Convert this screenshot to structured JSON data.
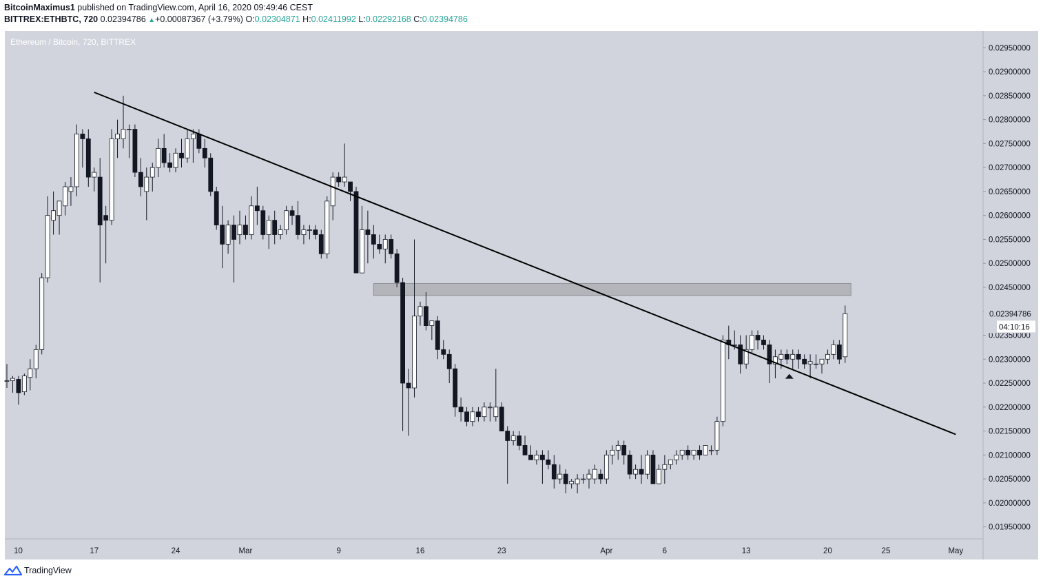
{
  "header": {
    "author": "BitcoinMaximus1",
    "published": "published on TradingView.com, April 16, 2020 09:49:46 CEST",
    "symbol": "BITTREX:ETHBTC, 720",
    "last": "0.02394786",
    "arrow": "▲",
    "change": "+0.00087367 (+3.79%)",
    "o_label": "O:",
    "o_value": "0.02304871",
    "h_label": "H:",
    "h_value": "0.02411992",
    "l_label": "L:",
    "l_value": "0.02292168",
    "c_label": "C:",
    "c_value": "0.02394786"
  },
  "footer": {
    "brand": "TradingView",
    "logo_icon": "tradingview-logo-icon"
  },
  "colors": {
    "background": "#d1d4dc",
    "candle_up": "#ffffff",
    "candle_down": "#131722",
    "zone": "#a9abb0",
    "trendline": "#000000"
  },
  "chart_data": {
    "type": "candlestick",
    "title": "Ethereum / Bitcoin, 720, BITTREX",
    "x_tick_labels": [
      "10",
      "17",
      "24",
      "Mar",
      "9",
      "16",
      "23",
      "Apr",
      "6",
      "13",
      "20",
      "25",
      "May"
    ],
    "y_ticks": [
      "0.01950000",
      "0.02000000",
      "0.02050000",
      "0.02100000",
      "0.02150000",
      "0.02200000",
      "0.02250000",
      "0.02300000",
      "0.02350000",
      "0.02400000",
      "0.02450000",
      "0.02500000",
      "0.02550000",
      "0.02600000",
      "0.02650000",
      "0.02700000",
      "0.02750000",
      "0.02800000",
      "0.02850000",
      "0.02900000",
      "0.02950000"
    ],
    "ylim": [
      0.01925,
      0.02985
    ],
    "x_start": "2020-02-09T12:00",
    "bar_hours": 12,
    "last_price_label": "0.02394786",
    "countdown_label": "04:10:16",
    "resistance_zone": {
      "from": "2020-03-12",
      "to": "2020-04-22",
      "low": 0.02433,
      "high": 0.02458
    },
    "trendline": [
      {
        "date": "2020-02-17",
        "price": 0.02857
      },
      {
        "date": "2020-05-01",
        "price": 0.02143
      }
    ],
    "marker": {
      "date": "2020-04-16",
      "price": 0.02265,
      "shape": "triangle-up"
    },
    "candles": [
      {
        "o": 0.02255,
        "h": 0.0229,
        "l": 0.0224,
        "c": 0.02255
      },
      {
        "o": 0.02255,
        "h": 0.02265,
        "l": 0.0223,
        "c": 0.0226
      },
      {
        "o": 0.02258,
        "h": 0.02265,
        "l": 0.02205,
        "c": 0.0223
      },
      {
        "o": 0.02232,
        "h": 0.0227,
        "l": 0.02225,
        "c": 0.02265
      },
      {
        "o": 0.02262,
        "h": 0.023,
        "l": 0.02235,
        "c": 0.0228
      },
      {
        "o": 0.0228,
        "h": 0.0233,
        "l": 0.0226,
        "c": 0.0232
      },
      {
        "o": 0.0232,
        "h": 0.0248,
        "l": 0.0231,
        "c": 0.0247
      },
      {
        "o": 0.0247,
        "h": 0.0264,
        "l": 0.0246,
        "c": 0.026
      },
      {
        "o": 0.0259,
        "h": 0.0265,
        "l": 0.0256,
        "c": 0.0261
      },
      {
        "o": 0.026,
        "h": 0.0263,
        "l": 0.0256,
        "c": 0.0263
      },
      {
        "o": 0.0262,
        "h": 0.0267,
        "l": 0.026,
        "c": 0.0266
      },
      {
        "o": 0.0265,
        "h": 0.0268,
        "l": 0.0262,
        "c": 0.0266
      },
      {
        "o": 0.0266,
        "h": 0.0279,
        "l": 0.0264,
        "c": 0.0277
      },
      {
        "o": 0.0277,
        "h": 0.0278,
        "l": 0.027,
        "c": 0.0276
      },
      {
        "o": 0.0276,
        "h": 0.0278,
        "l": 0.0266,
        "c": 0.0268
      },
      {
        "o": 0.0268,
        "h": 0.027,
        "l": 0.0265,
        "c": 0.0269
      },
      {
        "o": 0.0268,
        "h": 0.0272,
        "l": 0.0246,
        "c": 0.0258
      },
      {
        "o": 0.026,
        "h": 0.0262,
        "l": 0.025,
        "c": 0.0259
      },
      {
        "o": 0.0259,
        "h": 0.0278,
        "l": 0.0258,
        "c": 0.0276
      },
      {
        "o": 0.0276,
        "h": 0.028,
        "l": 0.0272,
        "c": 0.0277
      },
      {
        "o": 0.0276,
        "h": 0.0285,
        "l": 0.0274,
        "c": 0.0278
      },
      {
        "o": 0.0278,
        "h": 0.0279,
        "l": 0.0272,
        "c": 0.0278
      },
      {
        "o": 0.0278,
        "h": 0.0279,
        "l": 0.0268,
        "c": 0.0269
      },
      {
        "o": 0.0269,
        "h": 0.0272,
        "l": 0.0264,
        "c": 0.0266
      },
      {
        "o": 0.0265,
        "h": 0.027,
        "l": 0.0259,
        "c": 0.0268
      },
      {
        "o": 0.0268,
        "h": 0.0271,
        "l": 0.0265,
        "c": 0.027
      },
      {
        "o": 0.027,
        "h": 0.0276,
        "l": 0.0268,
        "c": 0.0274
      },
      {
        "o": 0.0274,
        "h": 0.0277,
        "l": 0.027,
        "c": 0.0271
      },
      {
        "o": 0.0271,
        "h": 0.0273,
        "l": 0.0269,
        "c": 0.027
      },
      {
        "o": 0.027,
        "h": 0.0274,
        "l": 0.0269,
        "c": 0.0273
      },
      {
        "o": 0.0273,
        "h": 0.0276,
        "l": 0.027,
        "c": 0.0272
      },
      {
        "o": 0.0272,
        "h": 0.0278,
        "l": 0.0271,
        "c": 0.0276
      },
      {
        "o": 0.0276,
        "h": 0.0278,
        "l": 0.0271,
        "c": 0.0277
      },
      {
        "o": 0.0277,
        "h": 0.0278,
        "l": 0.0273,
        "c": 0.0274
      },
      {
        "o": 0.0274,
        "h": 0.0276,
        "l": 0.027,
        "c": 0.0272
      },
      {
        "o": 0.0272,
        "h": 0.0273,
        "l": 0.0264,
        "c": 0.0265
      },
      {
        "o": 0.0265,
        "h": 0.0266,
        "l": 0.0257,
        "c": 0.0258
      },
      {
        "o": 0.0258,
        "h": 0.0262,
        "l": 0.0249,
        "c": 0.0254
      },
      {
        "o": 0.0254,
        "h": 0.0259,
        "l": 0.0252,
        "c": 0.0258
      },
      {
        "o": 0.0258,
        "h": 0.026,
        "l": 0.0246,
        "c": 0.0255
      },
      {
        "o": 0.0256,
        "h": 0.0261,
        "l": 0.0254,
        "c": 0.0258
      },
      {
        "o": 0.0258,
        "h": 0.026,
        "l": 0.0255,
        "c": 0.0256
      },
      {
        "o": 0.0256,
        "h": 0.0264,
        "l": 0.0255,
        "c": 0.0262
      },
      {
        "o": 0.0262,
        "h": 0.0266,
        "l": 0.0258,
        "c": 0.0261
      },
      {
        "o": 0.0261,
        "h": 0.0262,
        "l": 0.0255,
        "c": 0.0256
      },
      {
        "o": 0.0256,
        "h": 0.026,
        "l": 0.0253,
        "c": 0.0259
      },
      {
        "o": 0.0259,
        "h": 0.0261,
        "l": 0.0254,
        "c": 0.0256
      },
      {
        "o": 0.0256,
        "h": 0.0258,
        "l": 0.0255,
        "c": 0.0257
      },
      {
        "o": 0.0257,
        "h": 0.0262,
        "l": 0.0256,
        "c": 0.0261
      },
      {
        "o": 0.0261,
        "h": 0.0262,
        "l": 0.0258,
        "c": 0.026
      },
      {
        "o": 0.026,
        "h": 0.0263,
        "l": 0.0255,
        "c": 0.0256
      },
      {
        "o": 0.0256,
        "h": 0.0258,
        "l": 0.0254,
        "c": 0.0257
      },
      {
        "o": 0.0257,
        "h": 0.0258,
        "l": 0.0255,
        "c": 0.0257
      },
      {
        "o": 0.0257,
        "h": 0.0258,
        "l": 0.0255,
        "c": 0.0256
      },
      {
        "o": 0.0256,
        "h": 0.0257,
        "l": 0.0251,
        "c": 0.0252
      },
      {
        "o": 0.0252,
        "h": 0.0264,
        "l": 0.0251,
        "c": 0.0263
      },
      {
        "o": 0.0262,
        "h": 0.0269,
        "l": 0.0259,
        "c": 0.0268
      },
      {
        "o": 0.0268,
        "h": 0.0269,
        "l": 0.0266,
        "c": 0.0267
      },
      {
        "o": 0.0267,
        "h": 0.0275,
        "l": 0.0266,
        "c": 0.0268
      },
      {
        "o": 0.0267,
        "h": 0.0267,
        "l": 0.0263,
        "c": 0.0265
      },
      {
        "o": 0.0265,
        "h": 0.0266,
        "l": 0.0248,
        "c": 0.0248
      },
      {
        "o": 0.0248,
        "h": 0.0262,
        "l": 0.0248,
        "c": 0.0257
      },
      {
        "o": 0.0257,
        "h": 0.0261,
        "l": 0.025,
        "c": 0.0256
      },
      {
        "o": 0.0256,
        "h": 0.0258,
        "l": 0.0251,
        "c": 0.0254
      },
      {
        "o": 0.0254,
        "h": 0.0256,
        "l": 0.0252,
        "c": 0.0253
      },
      {
        "o": 0.0253,
        "h": 0.0256,
        "l": 0.025,
        "c": 0.0255
      },
      {
        "o": 0.0255,
        "h": 0.0256,
        "l": 0.0251,
        "c": 0.0252
      },
      {
        "o": 0.0252,
        "h": 0.0253,
        "l": 0.0245,
        "c": 0.0246
      },
      {
        "o": 0.0246,
        "h": 0.0247,
        "l": 0.0215,
        "c": 0.0225
      },
      {
        "o": 0.0225,
        "h": 0.0228,
        "l": 0.0214,
        "c": 0.0224
      },
      {
        "o": 0.0224,
        "h": 0.0255,
        "l": 0.0222,
        "c": 0.0239
      },
      {
        "o": 0.0239,
        "h": 0.0242,
        "l": 0.0237,
        "c": 0.0241
      },
      {
        "o": 0.0241,
        "h": 0.0244,
        "l": 0.0236,
        "c": 0.0237
      },
      {
        "o": 0.0237,
        "h": 0.0238,
        "l": 0.0234,
        "c": 0.0238
      },
      {
        "o": 0.0238,
        "h": 0.0239,
        "l": 0.023,
        "c": 0.0232
      },
      {
        "o": 0.0232,
        "h": 0.0234,
        "l": 0.023,
        "c": 0.0231
      },
      {
        "o": 0.0231,
        "h": 0.0232,
        "l": 0.0225,
        "c": 0.0228
      },
      {
        "o": 0.0228,
        "h": 0.0229,
        "l": 0.0218,
        "c": 0.022
      },
      {
        "o": 0.022,
        "h": 0.0222,
        "l": 0.0217,
        "c": 0.0219
      },
      {
        "o": 0.0219,
        "h": 0.022,
        "l": 0.0216,
        "c": 0.0217
      },
      {
        "o": 0.0217,
        "h": 0.022,
        "l": 0.0216,
        "c": 0.0219
      },
      {
        "o": 0.0219,
        "h": 0.022,
        "l": 0.0217,
        "c": 0.0218
      },
      {
        "o": 0.0218,
        "h": 0.0221,
        "l": 0.0217,
        "c": 0.022
      },
      {
        "o": 0.022,
        "h": 0.0221,
        "l": 0.0217,
        "c": 0.022
      },
      {
        "o": 0.0218,
        "h": 0.0228,
        "l": 0.0217,
        "c": 0.022
      },
      {
        "o": 0.022,
        "h": 0.0221,
        "l": 0.0215,
        "c": 0.0215
      },
      {
        "o": 0.0215,
        "h": 0.0216,
        "l": 0.0204,
        "c": 0.0213
      },
      {
        "o": 0.0213,
        "h": 0.0215,
        "l": 0.0212,
        "c": 0.0214
      },
      {
        "o": 0.0214,
        "h": 0.0215,
        "l": 0.0211,
        "c": 0.0212
      },
      {
        "o": 0.0212,
        "h": 0.0214,
        "l": 0.021,
        "c": 0.021
      },
      {
        "o": 0.021,
        "h": 0.0212,
        "l": 0.0209,
        "c": 0.0209
      },
      {
        "o": 0.0209,
        "h": 0.0211,
        "l": 0.0208,
        "c": 0.021
      },
      {
        "o": 0.021,
        "h": 0.0211,
        "l": 0.0204,
        "c": 0.0209
      },
      {
        "o": 0.0209,
        "h": 0.0211,
        "l": 0.0207,
        "c": 0.0208
      },
      {
        "o": 0.0208,
        "h": 0.021,
        "l": 0.0203,
        "c": 0.0205
      },
      {
        "o": 0.0205,
        "h": 0.0208,
        "l": 0.0204,
        "c": 0.0206
      },
      {
        "o": 0.0206,
        "h": 0.0207,
        "l": 0.0202,
        "c": 0.0204
      },
      {
        "o": 0.0204,
        "h": 0.0205,
        "l": 0.0203,
        "c": 0.02045
      },
      {
        "o": 0.0204,
        "h": 0.0206,
        "l": 0.0202,
        "c": 0.0205
      },
      {
        "o": 0.0205,
        "h": 0.0206,
        "l": 0.0204,
        "c": 0.0205
      },
      {
        "o": 0.0205,
        "h": 0.0207,
        "l": 0.0203,
        "c": 0.0206
      },
      {
        "o": 0.0205,
        "h": 0.0208,
        "l": 0.0204,
        "c": 0.0207
      },
      {
        "o": 0.0206,
        "h": 0.0207,
        "l": 0.0204,
        "c": 0.0205
      },
      {
        "o": 0.0205,
        "h": 0.0211,
        "l": 0.0204,
        "c": 0.021
      },
      {
        "o": 0.021,
        "h": 0.0212,
        "l": 0.0208,
        "c": 0.0211
      },
      {
        "o": 0.0211,
        "h": 0.0213,
        "l": 0.0209,
        "c": 0.0212
      },
      {
        "o": 0.0212,
        "h": 0.0213,
        "l": 0.0208,
        "c": 0.021
      },
      {
        "o": 0.021,
        "h": 0.0211,
        "l": 0.0205,
        "c": 0.0206
      },
      {
        "o": 0.0206,
        "h": 0.0208,
        "l": 0.0205,
        "c": 0.0207
      },
      {
        "o": 0.0207,
        "h": 0.021,
        "l": 0.0204,
        "c": 0.0206
      },
      {
        "o": 0.0206,
        "h": 0.0211,
        "l": 0.0205,
        "c": 0.021
      },
      {
        "o": 0.021,
        "h": 0.0211,
        "l": 0.0204,
        "c": 0.0204
      },
      {
        "o": 0.0204,
        "h": 0.0208,
        "l": 0.0204,
        "c": 0.0207
      },
      {
        "o": 0.0207,
        "h": 0.021,
        "l": 0.0204,
        "c": 0.0208
      },
      {
        "o": 0.0208,
        "h": 0.0209,
        "l": 0.0207,
        "c": 0.0209
      },
      {
        "o": 0.0209,
        "h": 0.0211,
        "l": 0.0208,
        "c": 0.021
      },
      {
        "o": 0.021,
        "h": 0.0211,
        "l": 0.0209,
        "c": 0.0211
      },
      {
        "o": 0.0211,
        "h": 0.0212,
        "l": 0.0209,
        "c": 0.021
      },
      {
        "o": 0.021,
        "h": 0.0211,
        "l": 0.0209,
        "c": 0.0211
      },
      {
        "o": 0.0211,
        "h": 0.0212,
        "l": 0.0209,
        "c": 0.021
      },
      {
        "o": 0.021,
        "h": 0.0212,
        "l": 0.021,
        "c": 0.0212
      },
      {
        "o": 0.0211,
        "h": 0.0212,
        "l": 0.021,
        "c": 0.0211
      },
      {
        "o": 0.0211,
        "h": 0.0218,
        "l": 0.021,
        "c": 0.0217
      },
      {
        "o": 0.0217,
        "h": 0.0235,
        "l": 0.0216,
        "c": 0.0234
      },
      {
        "o": 0.0234,
        "h": 0.0237,
        "l": 0.023,
        "c": 0.0233
      },
      {
        "o": 0.0233,
        "h": 0.0236,
        "l": 0.0232,
        "c": 0.0233
      },
      {
        "o": 0.0233,
        "h": 0.0235,
        "l": 0.0227,
        "c": 0.0229
      },
      {
        "o": 0.0229,
        "h": 0.0235,
        "l": 0.0228,
        "c": 0.0232
      },
      {
        "o": 0.0232,
        "h": 0.0236,
        "l": 0.0231,
        "c": 0.0235
      },
      {
        "o": 0.0235,
        "h": 0.0236,
        "l": 0.0232,
        "c": 0.0234
      },
      {
        "o": 0.0234,
        "h": 0.0235,
        "l": 0.0232,
        "c": 0.0233
      },
      {
        "o": 0.0233,
        "h": 0.0234,
        "l": 0.0225,
        "c": 0.0229
      },
      {
        "o": 0.0229,
        "h": 0.0232,
        "l": 0.0226,
        "c": 0.02305
      },
      {
        "o": 0.023,
        "h": 0.0232,
        "l": 0.0228,
        "c": 0.0231
      },
      {
        "o": 0.0231,
        "h": 0.0232,
        "l": 0.0229,
        "c": 0.023
      },
      {
        "o": 0.023,
        "h": 0.0232,
        "l": 0.0228,
        "c": 0.0231
      },
      {
        "o": 0.0231,
        "h": 0.0232,
        "l": 0.0228,
        "c": 0.023
      },
      {
        "o": 0.023,
        "h": 0.0231,
        "l": 0.0228,
        "c": 0.0229
      },
      {
        "o": 0.0229,
        "h": 0.0231,
        "l": 0.0226,
        "c": 0.02295
      },
      {
        "o": 0.0229,
        "h": 0.0231,
        "l": 0.0228,
        "c": 0.0229
      },
      {
        "o": 0.0229,
        "h": 0.023,
        "l": 0.0227,
        "c": 0.023
      },
      {
        "o": 0.023,
        "h": 0.0232,
        "l": 0.0229,
        "c": 0.0231
      },
      {
        "o": 0.0231,
        "h": 0.0234,
        "l": 0.023,
        "c": 0.0233
      },
      {
        "o": 0.0233,
        "h": 0.0234,
        "l": 0.0229,
        "c": 0.023
      },
      {
        "o": 0.02305,
        "h": 0.02412,
        "l": 0.02292,
        "c": 0.02395
      }
    ]
  }
}
